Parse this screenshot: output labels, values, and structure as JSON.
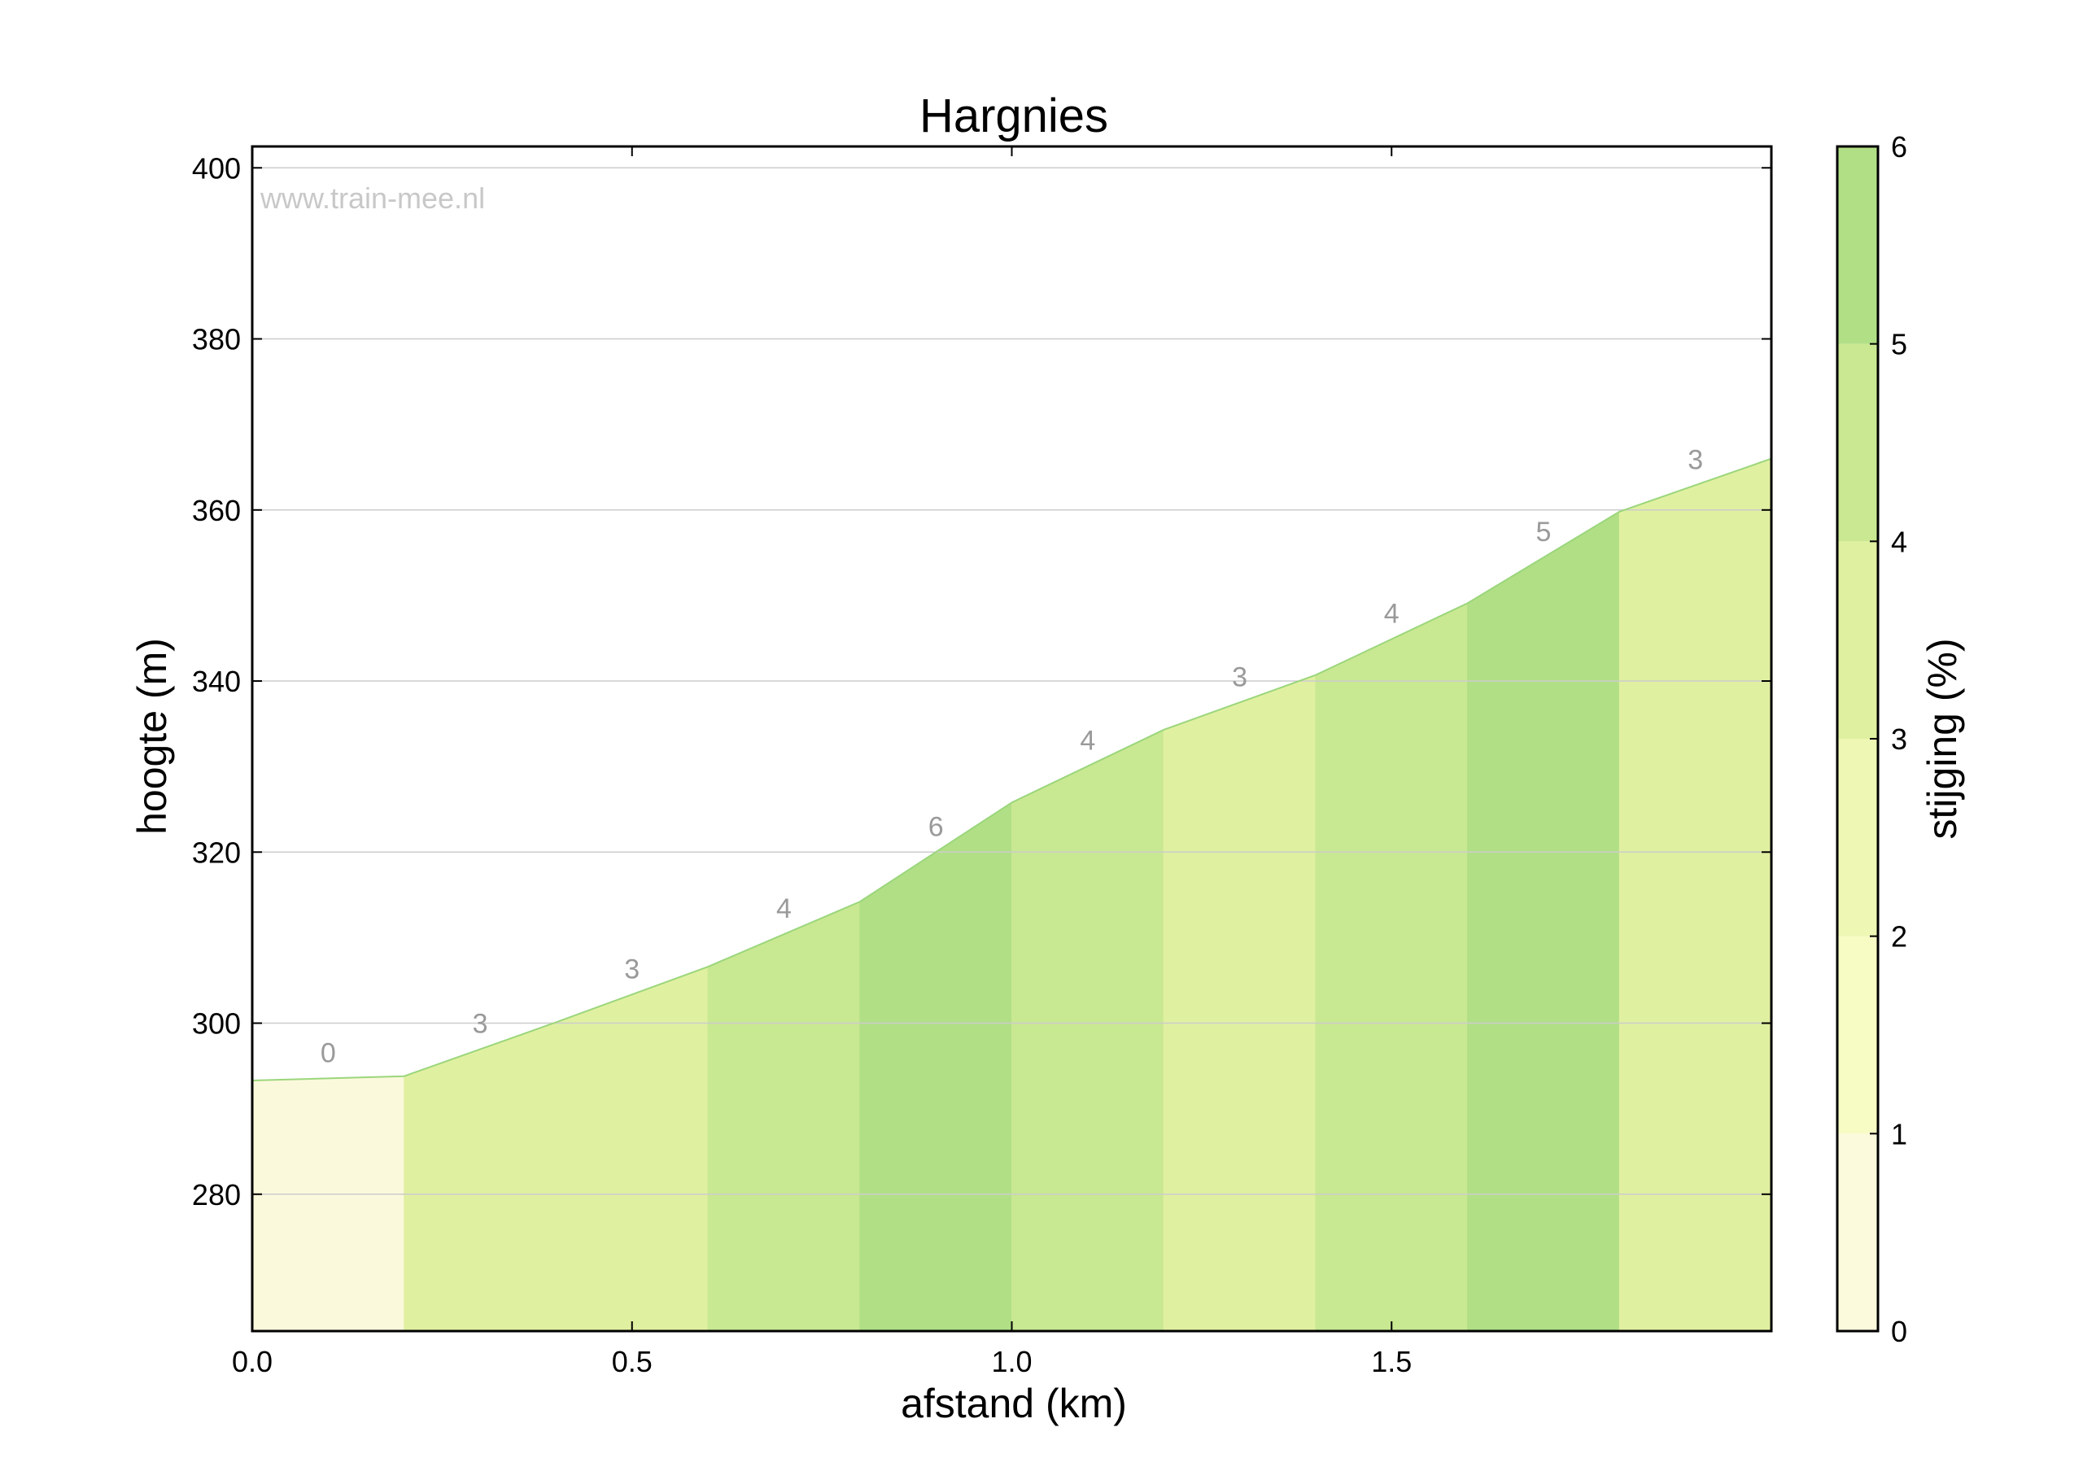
{
  "chart_data": {
    "type": "area",
    "title": "Hargnies",
    "watermark": "www.train-mee.nl",
    "xlabel": "afstand (km)",
    "ylabel": "hoogte (m)",
    "xlim": [
      0.0,
      2.0
    ],
    "ylim": [
      264,
      402.5
    ],
    "xticks": [
      0.0,
      0.5,
      1.0,
      1.5
    ],
    "yticks": [
      280,
      300,
      320,
      340,
      360,
      380,
      400
    ],
    "grid": true,
    "profile": {
      "x": [
        0.0,
        0.2,
        0.4,
        0.6,
        0.8,
        1.0,
        1.2,
        1.4,
        1.6,
        1.8,
        2.0
      ],
      "y": [
        293.3,
        293.8,
        300.1,
        306.6,
        314.2,
        325.8,
        334.3,
        340.7,
        349.1,
        359.8,
        366.0
      ]
    },
    "segments": [
      {
        "x0": 0.0,
        "x1": 0.2,
        "grade": 0,
        "label": "0"
      },
      {
        "x0": 0.2,
        "x1": 0.4,
        "grade": 3,
        "label": "3"
      },
      {
        "x0": 0.4,
        "x1": 0.6,
        "grade": 3,
        "label": "3"
      },
      {
        "x0": 0.6,
        "x1": 0.8,
        "grade": 4,
        "label": "4"
      },
      {
        "x0": 0.8,
        "x1": 1.0,
        "grade": 6,
        "label": "6"
      },
      {
        "x0": 1.0,
        "x1": 1.2,
        "grade": 4,
        "label": "4"
      },
      {
        "x0": 1.2,
        "x1": 1.4,
        "grade": 3,
        "label": "3"
      },
      {
        "x0": 1.4,
        "x1": 1.6,
        "grade": 4,
        "label": "4"
      },
      {
        "x0": 1.6,
        "x1": 1.8,
        "grade": 5,
        "label": "5"
      },
      {
        "x0": 1.8,
        "x1": 2.0,
        "grade": 3,
        "label": "3"
      }
    ],
    "colorbar": {
      "label": "stijging (%)",
      "range": [
        0,
        6
      ],
      "ticks": [
        0,
        1,
        2,
        3,
        4,
        5,
        6
      ],
      "bands": [
        {
          "from": 0,
          "to": 1,
          "color": "#fcfadc"
        },
        {
          "from": 1,
          "to": 2,
          "color": "#f7fbc4"
        },
        {
          "from": 2,
          "to": 3,
          "color": "#eef7b4"
        },
        {
          "from": 3,
          "to": 4,
          "color": "#dff0a0"
        },
        {
          "from": 4,
          "to": 5,
          "color": "#c9e891"
        },
        {
          "from": 5,
          "to": 6,
          "color": "#b1df86"
        }
      ]
    },
    "colors": {
      "grade_0": "#fbf9dc",
      "grade_3": "#e0f0a1",
      "grade_4": "#c9e892",
      "grade_5": "#b1df86",
      "grade_6": "#b1df86",
      "profile_line": "#9bd67c",
      "grid": "#cccccc"
    }
  }
}
